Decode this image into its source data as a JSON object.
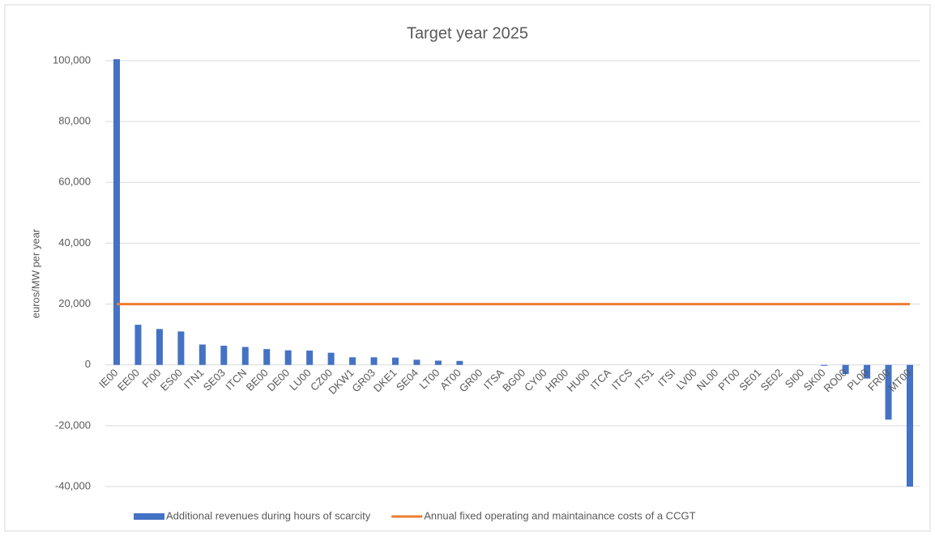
{
  "chart_data": {
    "type": "bar-line",
    "title": "Target year 2025",
    "y_label": "euros/MW per year",
    "categories": [
      "IE00",
      "EE00",
      "FI00",
      "ES00",
      "ITN1",
      "SE03",
      "ITCN",
      "BE00",
      "DE00",
      "LU00",
      "CZ00",
      "DKW1",
      "GR03",
      "DKE1",
      "SE04",
      "LT00",
      "AT00",
      "GR00",
      "ITSA",
      "BG00",
      "CY00",
      "HR00",
      "HU00",
      "ITCA",
      "ITCS",
      "ITS1",
      "ITSI",
      "LV00",
      "NL00",
      "PT00",
      "SE01",
      "SE02",
      "SI00",
      "SK00",
      "RO00",
      "PL00",
      "FR00",
      "MT00"
    ],
    "series": [
      {
        "name": "Additional revenues during hours of scarcity",
        "kind": "bar",
        "color": "#4472c4",
        "values": [
          100500,
          13200,
          11800,
          11000,
          6700,
          6300,
          5900,
          5200,
          4800,
          4700,
          4000,
          2500,
          2500,
          2400,
          1700,
          1400,
          1300,
          0,
          0,
          0,
          0,
          0,
          0,
          0,
          0,
          0,
          0,
          0,
          0,
          0,
          0,
          0,
          0,
          -300,
          -3000,
          -4500,
          -18000,
          -40000
        ]
      },
      {
        "name": "Annual fixed operating and maintainance costs of a CCGT",
        "kind": "line",
        "color": "#ed7d31",
        "values": [
          20000,
          20000,
          20000,
          20000,
          20000,
          20000,
          20000,
          20000,
          20000,
          20000,
          20000,
          20000,
          20000,
          20000,
          20000,
          20000,
          20000,
          20000,
          20000,
          20000,
          20000,
          20000,
          20000,
          20000,
          20000,
          20000,
          20000,
          20000,
          20000,
          20000,
          20000,
          20000,
          20000,
          20000,
          20000,
          20000,
          20000,
          20000
        ]
      }
    ],
    "ylim": [
      -40000,
      100000
    ],
    "yticks": [
      {
        "value": -40000,
        "label": "-40,000"
      },
      {
        "value": -20000,
        "label": "-20,000"
      },
      0,
      {
        "value": 20000,
        "label": "20,000"
      },
      {
        "value": 40000,
        "label": "40,000"
      },
      {
        "value": 60000,
        "label": "60,000"
      },
      {
        "value": 80000,
        "label": "80,000"
      },
      {
        "value": 100000,
        "label": "100,000"
      }
    ],
    "grid": true,
    "legend": "bottom"
  }
}
